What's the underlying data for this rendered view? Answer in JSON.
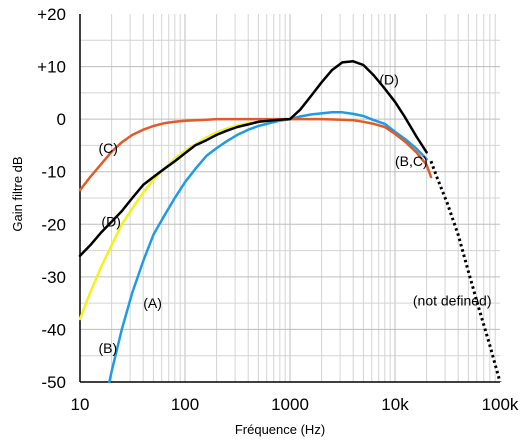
{
  "chart_data": {
    "type": "line",
    "title": "",
    "xlabel": "Fréquence (Hz)",
    "ylabel": "Gain filtre dB",
    "xscale": "log",
    "xlim": [
      10,
      100000
    ],
    "ylim": [
      -50,
      20
    ],
    "grid": true,
    "x_tick_labels": [
      {
        "value": 10,
        "label": "10"
      },
      {
        "value": 100,
        "label": "100"
      },
      {
        "value": 1000,
        "label": "1000"
      },
      {
        "value": 10000,
        "label": "10k"
      },
      {
        "value": 100000,
        "label": "100k"
      }
    ],
    "y_tick_labels": [
      {
        "value": 20,
        "label": "+20"
      },
      {
        "value": 10,
        "label": "+10"
      },
      {
        "value": 0,
        "label": "0"
      },
      {
        "value": -10,
        "label": "-10"
      },
      {
        "value": -20,
        "label": "-20"
      },
      {
        "value": -30,
        "label": "-30"
      },
      {
        "value": -40,
        "label": "-40"
      },
      {
        "value": -50,
        "label": "-50"
      }
    ],
    "series": [
      {
        "key": "A",
        "color": "#1f9be6",
        "style": "solid",
        "points": [
          [
            19,
            -50
          ],
          [
            20,
            -48
          ],
          [
            25,
            -40
          ],
          [
            31.5,
            -33
          ],
          [
            40,
            -27
          ],
          [
            50,
            -22
          ],
          [
            63,
            -18.5
          ],
          [
            80,
            -15
          ],
          [
            100,
            -12
          ],
          [
            125,
            -9.5
          ],
          [
            160,
            -7
          ],
          [
            200,
            -5.5
          ],
          [
            250,
            -4.2
          ],
          [
            315,
            -3
          ],
          [
            400,
            -2
          ],
          [
            500,
            -1.3
          ],
          [
            630,
            -0.8
          ],
          [
            800,
            -0.3
          ],
          [
            1000,
            0
          ],
          [
            1250,
            0.5
          ],
          [
            1600,
            0.9
          ],
          [
            2000,
            1.1
          ],
          [
            2500,
            1.3
          ],
          [
            3150,
            1.3
          ],
          [
            4000,
            1.0
          ],
          [
            5000,
            0.6
          ],
          [
            6300,
            -0.2
          ],
          [
            8000,
            -0.9
          ],
          [
            10000,
            -2.4
          ],
          [
            12500,
            -3.8
          ],
          [
            16000,
            -5.6
          ],
          [
            20000,
            -7.6
          ]
        ]
      },
      {
        "key": "B",
        "color": "#f2f21f",
        "style": "solid",
        "points": [
          [
            10,
            -38
          ],
          [
            12.5,
            -33
          ],
          [
            16,
            -28
          ],
          [
            20,
            -24
          ],
          [
            25,
            -20
          ],
          [
            31.5,
            -17
          ],
          [
            40,
            -14
          ],
          [
            50,
            -11.5
          ],
          [
            63,
            -9.5
          ],
          [
            80,
            -7.5
          ],
          [
            100,
            -6
          ],
          [
            125,
            -4.8
          ],
          [
            160,
            -3.5
          ],
          [
            200,
            -2.5
          ],
          [
            250,
            -1.8
          ],
          [
            315,
            -1.2
          ],
          [
            400,
            -0.8
          ],
          [
            500,
            -0.5
          ],
          [
            630,
            -0.3
          ],
          [
            800,
            -0.1
          ],
          [
            1000,
            0
          ]
        ]
      },
      {
        "key": "C",
        "color": "#e25a28",
        "style": "solid",
        "points": [
          [
            10,
            -13.5
          ],
          [
            12.5,
            -11
          ],
          [
            16,
            -8.5
          ],
          [
            20,
            -6.2
          ],
          [
            25,
            -4.4
          ],
          [
            31.5,
            -3
          ],
          [
            40,
            -2
          ],
          [
            50,
            -1.3
          ],
          [
            63,
            -0.8
          ],
          [
            80,
            -0.5
          ],
          [
            100,
            -0.3
          ],
          [
            125,
            -0.2
          ],
          [
            160,
            -0.1
          ],
          [
            200,
            0
          ],
          [
            400,
            0
          ],
          [
            1000,
            0
          ],
          [
            2000,
            0
          ],
          [
            3150,
            -0.1
          ],
          [
            4000,
            -0.2
          ],
          [
            5000,
            -0.5
          ],
          [
            6300,
            -0.9
          ],
          [
            8000,
            -1.5
          ],
          [
            10000,
            -2.8
          ],
          [
            12500,
            -4.3
          ],
          [
            16000,
            -6.3
          ],
          [
            20000,
            -8.7
          ],
          [
            22000,
            -11
          ]
        ]
      },
      {
        "key": "D",
        "color": "#000000",
        "style": "solid",
        "points": [
          [
            10,
            -26
          ],
          [
            12.5,
            -24
          ],
          [
            16,
            -21.5
          ],
          [
            20,
            -19.5
          ],
          [
            25,
            -17.5
          ],
          [
            31.5,
            -15
          ],
          [
            40,
            -12.5
          ],
          [
            50,
            -11
          ],
          [
            63,
            -9.5
          ],
          [
            80,
            -8
          ],
          [
            100,
            -6.5
          ],
          [
            125,
            -5
          ],
          [
            160,
            -4
          ],
          [
            200,
            -3
          ],
          [
            250,
            -2.2
          ],
          [
            315,
            -1.5
          ],
          [
            400,
            -1
          ],
          [
            500,
            -0.5
          ],
          [
            630,
            -0.3
          ],
          [
            800,
            -0.1
          ],
          [
            1000,
            0
          ],
          [
            1250,
            1.8
          ],
          [
            1600,
            4.5
          ],
          [
            2000,
            7
          ],
          [
            2500,
            9.3
          ],
          [
            3150,
            10.8
          ],
          [
            4000,
            11
          ],
          [
            5000,
            10.3
          ],
          [
            6300,
            8.3
          ],
          [
            8000,
            5.8
          ],
          [
            10000,
            3.3
          ],
          [
            12500,
            0.3
          ],
          [
            16000,
            -3.3
          ],
          [
            20000,
            -6.3
          ]
        ]
      },
      {
        "key": "not-defined",
        "color": "#000000",
        "style": "dotted",
        "points": [
          [
            22000,
            -8
          ],
          [
            25000,
            -11
          ],
          [
            31500,
            -16
          ],
          [
            40000,
            -22
          ],
          [
            50000,
            -29
          ],
          [
            63000,
            -36
          ],
          [
            80000,
            -43
          ],
          [
            100000,
            -50
          ]
        ]
      }
    ],
    "annotations": [
      {
        "text": "(A)",
        "x": 40,
        "y": -35
      },
      {
        "text": "(B)",
        "x": 15,
        "y": -43.5
      },
      {
        "text": "(C)",
        "x": 15,
        "y": -5.5
      },
      {
        "text": "(D)",
        "x": 16,
        "y": -19.5
      },
      {
        "text": "(D)",
        "x": 7100,
        "y": 7.5
      },
      {
        "text": "(B,C)",
        "x": 10000,
        "y": -8
      },
      {
        "text": "(not defined)",
        "x": 14800,
        "y": -34.5
      }
    ]
  }
}
